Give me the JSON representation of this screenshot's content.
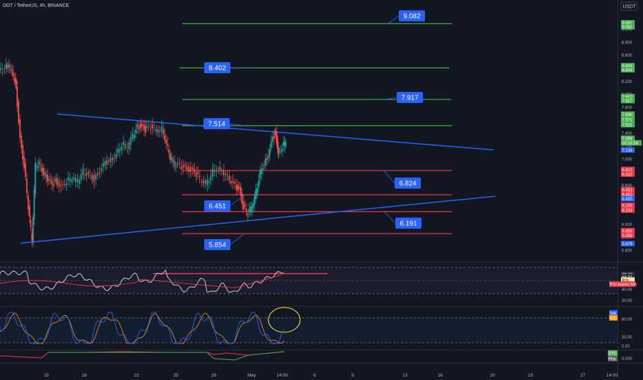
{
  "header": {
    "symbol": "DOT / TetherUS, 4h, BINANCE",
    "currency_button": "USDT"
  },
  "price_axis": {
    "ticks": [
      "9.000",
      "8.800",
      "8.600",
      "8.400",
      "8.200",
      "8.000",
      "7.800",
      "7.600",
      "7.400",
      "7.200",
      "7.000",
      "6.800",
      "6.600",
      "6.400",
      "6.200",
      "6.000",
      "5.800",
      "5.600"
    ],
    "badges": [
      {
        "text": "9.081",
        "color": "#4caf50",
        "v": 9.095
      },
      {
        "text": "9.081",
        "color": "#4caf50",
        "v": 9.035
      },
      {
        "text": "8.404",
        "color": "#4caf50",
        "v": 8.435
      },
      {
        "text": "8.404",
        "color": "#4caf50",
        "v": 8.375
      },
      {
        "text": "7.917",
        "color": "#4caf50",
        "v": 7.96
      },
      {
        "text": "7.917",
        "color": "#4caf50",
        "v": 7.9
      },
      {
        "text": "7.690",
        "color": "#4caf50",
        "v": 7.69
      },
      {
        "text": "7.571",
        "color": "#4caf50",
        "v": 7.61
      },
      {
        "text": "7.521",
        "color": "#4caf50",
        "v": 7.53
      },
      {
        "text": "7.359",
        "color": "#4caf50",
        "v": 7.32
      },
      {
        "text": "02:53:54",
        "color": "#4caf50",
        "v": 7.25
      },
      {
        "text": "7.134",
        "color": "#2962ff",
        "v": 7.14
      },
      {
        "text": "6.822",
        "color": "#f23645",
        "v": 6.84
      },
      {
        "text": "6.822",
        "color": "#f23645",
        "v": 6.77
      },
      {
        "text": "6.452",
        "color": "#f23645",
        "v": 6.53
      },
      {
        "text": "6.452",
        "color": "#f23645",
        "v": 6.46
      },
      {
        "text": "6.420",
        "color": "#2962ff",
        "v": 6.39
      },
      {
        "text": "6.203",
        "color": "#f23645",
        "v": 6.29
      },
      {
        "text": "6.203",
        "color": "#f23645",
        "v": 6.215
      },
      {
        "text": "5.859",
        "color": "#f23645",
        "v": 5.9
      },
      {
        "text": "5.859",
        "color": "#f23645",
        "v": 5.83
      },
      {
        "text": "5.679",
        "color": "#2962ff",
        "v": 5.7
      }
    ]
  },
  "levels": [
    {
      "label": "9.082",
      "value": 9.082,
      "color": "#4caf50"
    },
    {
      "label": "8.402",
      "value": 8.402,
      "color": "#4caf50"
    },
    {
      "label": "7.917",
      "value": 7.917,
      "color": "#4caf50"
    },
    {
      "label": "7.514",
      "value": 7.514,
      "color": "#4caf50"
    },
    {
      "label": "6.824",
      "value": 6.824,
      "color": "#f23645"
    },
    {
      "label": "6.451",
      "value": 6.451,
      "color": "#f23645"
    },
    {
      "label": "6.191",
      "value": 6.191,
      "color": "#f23645"
    },
    {
      "label": "5.854",
      "value": 5.854,
      "color": "#f23645"
    }
  ],
  "rsi": {
    "ticks": [
      "60.00",
      "40.00",
      "20.00"
    ],
    "badges": [
      {
        "text": "69.43",
        "color": "#2a2e39",
        "v": 69.43
      },
      {
        "text": "68.32",
        "color": "#2a2e39",
        "v": 65.5
      },
      {
        "text": "RSI",
        "color": "#f7e8a0",
        "v": 60.5
      },
      {
        "text": "RSI-based MA",
        "color": "#f23645",
        "v": 54.5
      }
    ]
  },
  "stoch": {
    "ticks": [
      "80.00",
      "20.00",
      "0.00"
    ],
    "badges": [
      {
        "text": "%K",
        "color": "#2962ff",
        "v": 92
      },
      {
        "text": "%D",
        "color": "#ff9800",
        "v": 80
      }
    ]
  },
  "stc": {
    "ticks": [
      "0.000"
    ],
    "badges": [
      {
        "text": "STC",
        "color": "#4caf50"
      },
      {
        "text": "Plot",
        "color": "#5d606b"
      }
    ]
  },
  "time_axis": [
    "15",
    "18",
    "22",
    "25",
    "28",
    "May",
    "14:00",
    "6",
    "9",
    "13",
    "16",
    "20",
    "23",
    "27",
    "14:00"
  ],
  "colors": {
    "up": "#26a69a",
    "down": "#ef5350",
    "trendline": "#2962ff",
    "label_bg": "#2962ff",
    "bg": "#131722"
  }
}
